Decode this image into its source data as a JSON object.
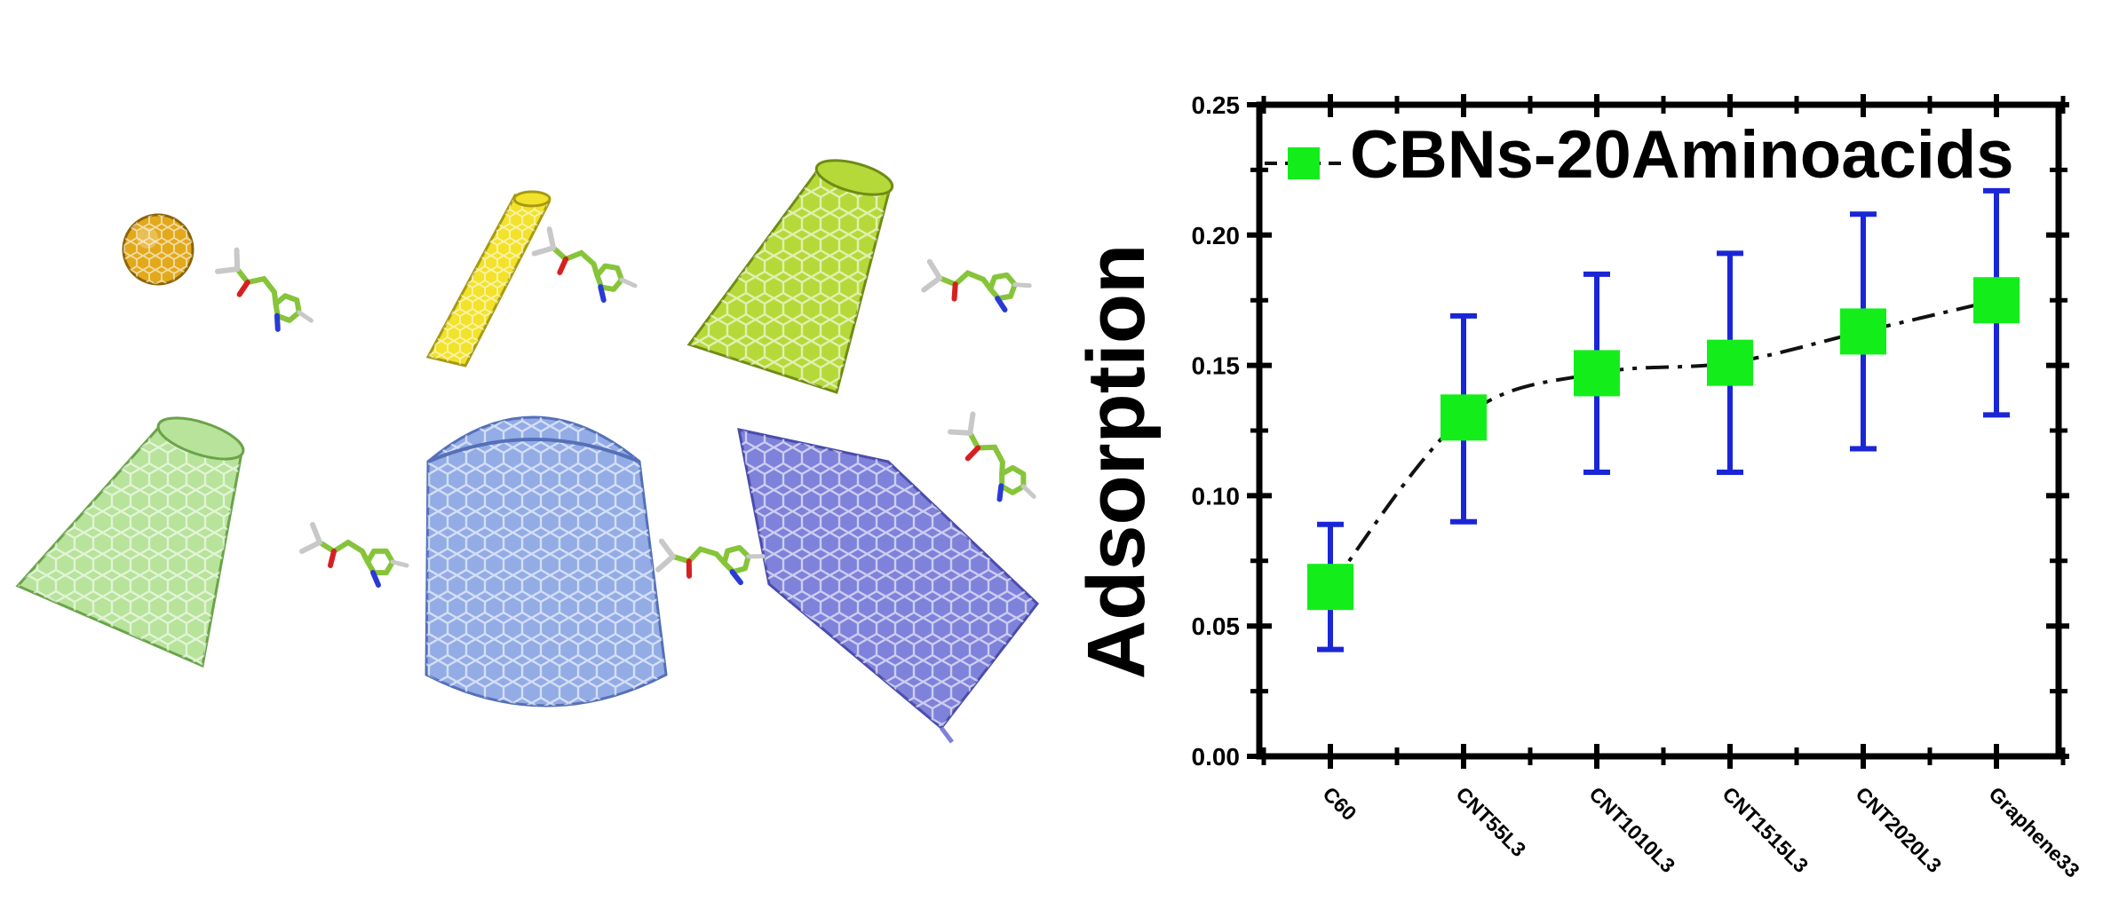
{
  "colors": {
    "c60": "#e2a91c",
    "cnt55": "#f2e22c",
    "cnt1010": "#b6d93a",
    "cnt1515": "#b7e39a",
    "cnt2020": "#93ace6",
    "graphene": "#7f82da",
    "aminoacid": "#86c43a",
    "marker": "#13ee1a",
    "errorbar": "#1a26d6",
    "axis": "#000000"
  },
  "illustration": {
    "structures": [
      {
        "name": "c60-fullerene-icon",
        "shape": "sphere",
        "color_key": "c60"
      },
      {
        "name": "cnt55-nanotube-icon",
        "shape": "tube",
        "color_key": "cnt55"
      },
      {
        "name": "cnt1010-nanotube-icon",
        "shape": "tube",
        "color_key": "cnt1010"
      },
      {
        "name": "cnt1515-nanotube-icon",
        "shape": "tube",
        "color_key": "cnt1515"
      },
      {
        "name": "cnt2020-nanotube-icon",
        "shape": "tube",
        "color_key": "cnt2020"
      },
      {
        "name": "graphene-sheet-icon",
        "shape": "sheet",
        "color_key": "graphene"
      }
    ],
    "molecule_icon": "aminoacid-molecule-icon"
  },
  "chart_data": {
    "type": "scatter",
    "title": "",
    "xlabel": "",
    "ylabel": "Adsorption",
    "categories": [
      "C60",
      "CNT55L3",
      "CNT1010L3",
      "CNT1515L3",
      "CNT2020L3",
      "Graphene33"
    ],
    "series": [
      {
        "name": "CBNs-20Aminoacids",
        "values": [
          0.065,
          0.13,
          0.147,
          0.151,
          0.163,
          0.175
        ],
        "error_low": [
          0.041,
          0.09,
          0.109,
          0.109,
          0.118,
          0.131
        ],
        "error_high": [
          0.089,
          0.169,
          0.185,
          0.193,
          0.208,
          0.217
        ],
        "line_style": "dash-dot",
        "marker": "square"
      }
    ],
    "ylim": [
      0,
      0.25
    ],
    "yticks": [
      "0.00",
      "0.05",
      "0.10",
      "0.15",
      "0.20",
      "0.25"
    ],
    "legend_position": "top",
    "grid": false
  }
}
